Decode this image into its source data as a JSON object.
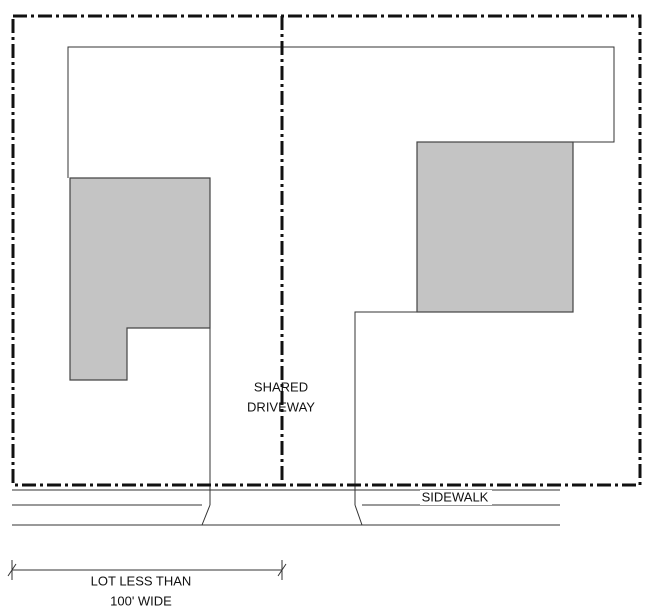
{
  "labels": {
    "shared_driveway": [
      "SHARED",
      "DRIVEWAY"
    ],
    "sidewalk": "SIDEWALK",
    "lot_width": [
      "LOT LESS THAN",
      "100' WIDE"
    ]
  }
}
